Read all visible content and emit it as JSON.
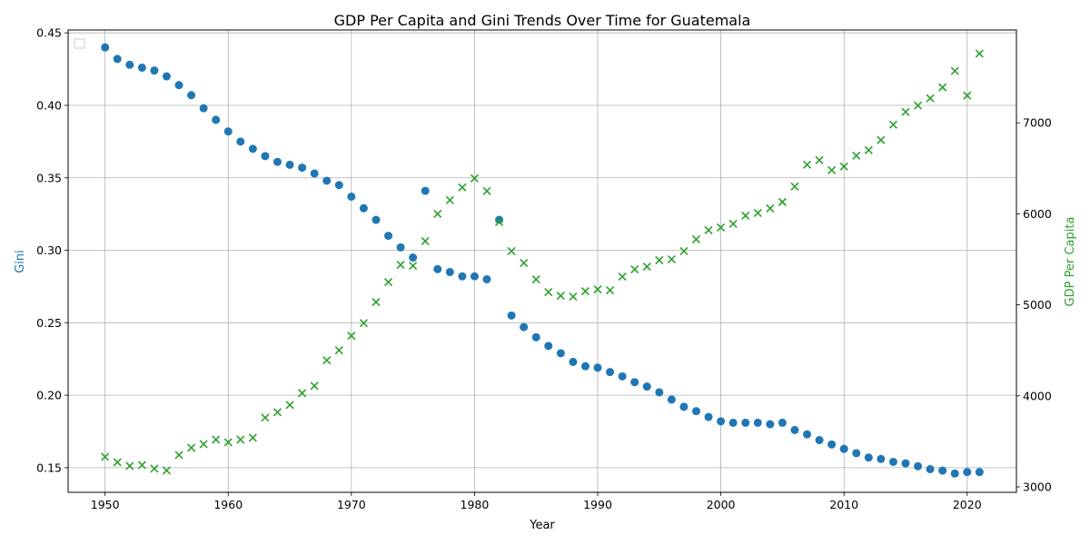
{
  "chart_data": {
    "type": "scatter",
    "title": "GDP Per Capita and Gini Trends Over Time for Guatemala",
    "xlabel": "Year",
    "ylabel_left": "Gini",
    "ylabel_right": "GDP Per Capita",
    "xlim": [
      1947,
      2024
    ],
    "ylim_left": [
      0.133,
      0.452
    ],
    "ylim_right": [
      2940,
      8020
    ],
    "x_ticks": [
      1950,
      1960,
      1970,
      1980,
      1990,
      2000,
      2010,
      2020
    ],
    "y_left_ticks": [
      "0.15",
      "0.20",
      "0.25",
      "0.30",
      "0.35",
      "0.40",
      "0.45"
    ],
    "y_right_ticks": [
      "3000",
      "4000",
      "5000",
      "6000",
      "7000"
    ],
    "grid": true,
    "legend": "top-left (empty)",
    "colors": {
      "gini": "#1f77b4",
      "gdp": "#2ca02c",
      "gini_axis_label": "#1f77b4",
      "gdp_axis_label": "#2ca02c"
    },
    "x": [
      1950,
      1951,
      1952,
      1953,
      1954,
      1955,
      1956,
      1957,
      1958,
      1959,
      1960,
      1961,
      1962,
      1963,
      1964,
      1965,
      1966,
      1967,
      1968,
      1969,
      1970,
      1971,
      1972,
      1973,
      1974,
      1975,
      1976,
      1977,
      1978,
      1979,
      1980,
      1981,
      1982,
      1983,
      1984,
      1985,
      1986,
      1987,
      1988,
      1989,
      1990,
      1991,
      1992,
      1993,
      1994,
      1995,
      1996,
      1997,
      1998,
      1999,
      2000,
      2001,
      2002,
      2003,
      2004,
      2005,
      2006,
      2007,
      2008,
      2009,
      2010,
      2011,
      2012,
      2013,
      2014,
      2015,
      2016,
      2017,
      2018,
      2019,
      2020,
      2021
    ],
    "series": [
      {
        "name": "Gini",
        "axis": "left",
        "marker": "circle",
        "values": [
          0.44,
          0.432,
          0.428,
          0.426,
          0.424,
          0.42,
          0.414,
          0.407,
          0.398,
          0.39,
          0.382,
          0.375,
          0.37,
          0.365,
          0.361,
          0.359,
          0.357,
          0.353,
          0.348,
          0.345,
          0.337,
          0.329,
          0.321,
          0.31,
          0.302,
          0.295,
          0.341,
          0.287,
          0.285,
          0.282,
          0.282,
          0.28,
          0.321,
          0.255,
          0.247,
          0.24,
          0.234,
          0.229,
          0.223,
          0.22,
          0.219,
          0.216,
          0.213,
          0.209,
          0.206,
          0.202,
          0.197,
          0.192,
          0.189,
          0.185,
          0.182,
          0.181,
          0.181,
          0.181,
          0.18,
          0.181,
          0.176,
          0.173,
          0.169,
          0.166,
          0.163,
          0.16,
          0.157,
          0.156,
          0.154,
          0.153,
          0.151,
          0.149,
          0.148,
          0.146,
          0.147,
          0.147
        ]
      },
      {
        "name": "GDP Per Capita",
        "axis": "right",
        "marker": "x",
        "values": [
          3330,
          3270,
          3230,
          3240,
          3200,
          3180,
          3350,
          3430,
          3470,
          3520,
          3490,
          3520,
          3540,
          3760,
          3820,
          3900,
          4030,
          4110,
          4390,
          4500,
          4660,
          4800,
          5030,
          5250,
          5440,
          5430,
          5700,
          6000,
          6150,
          6290,
          6390,
          6250,
          5910,
          5590,
          5460,
          5280,
          5140,
          5100,
          5090,
          5150,
          5170,
          5160,
          5310,
          5390,
          5420,
          5490,
          5500,
          5590,
          5720,
          5820,
          5850,
          5890,
          5980,
          6010,
          6060,
          6130,
          6300,
          6540,
          6590,
          6480,
          6520,
          6640,
          6700,
          6810,
          6980,
          7120,
          7190,
          7270,
          7390,
          7570,
          7300,
          7760
        ]
      }
    ]
  }
}
